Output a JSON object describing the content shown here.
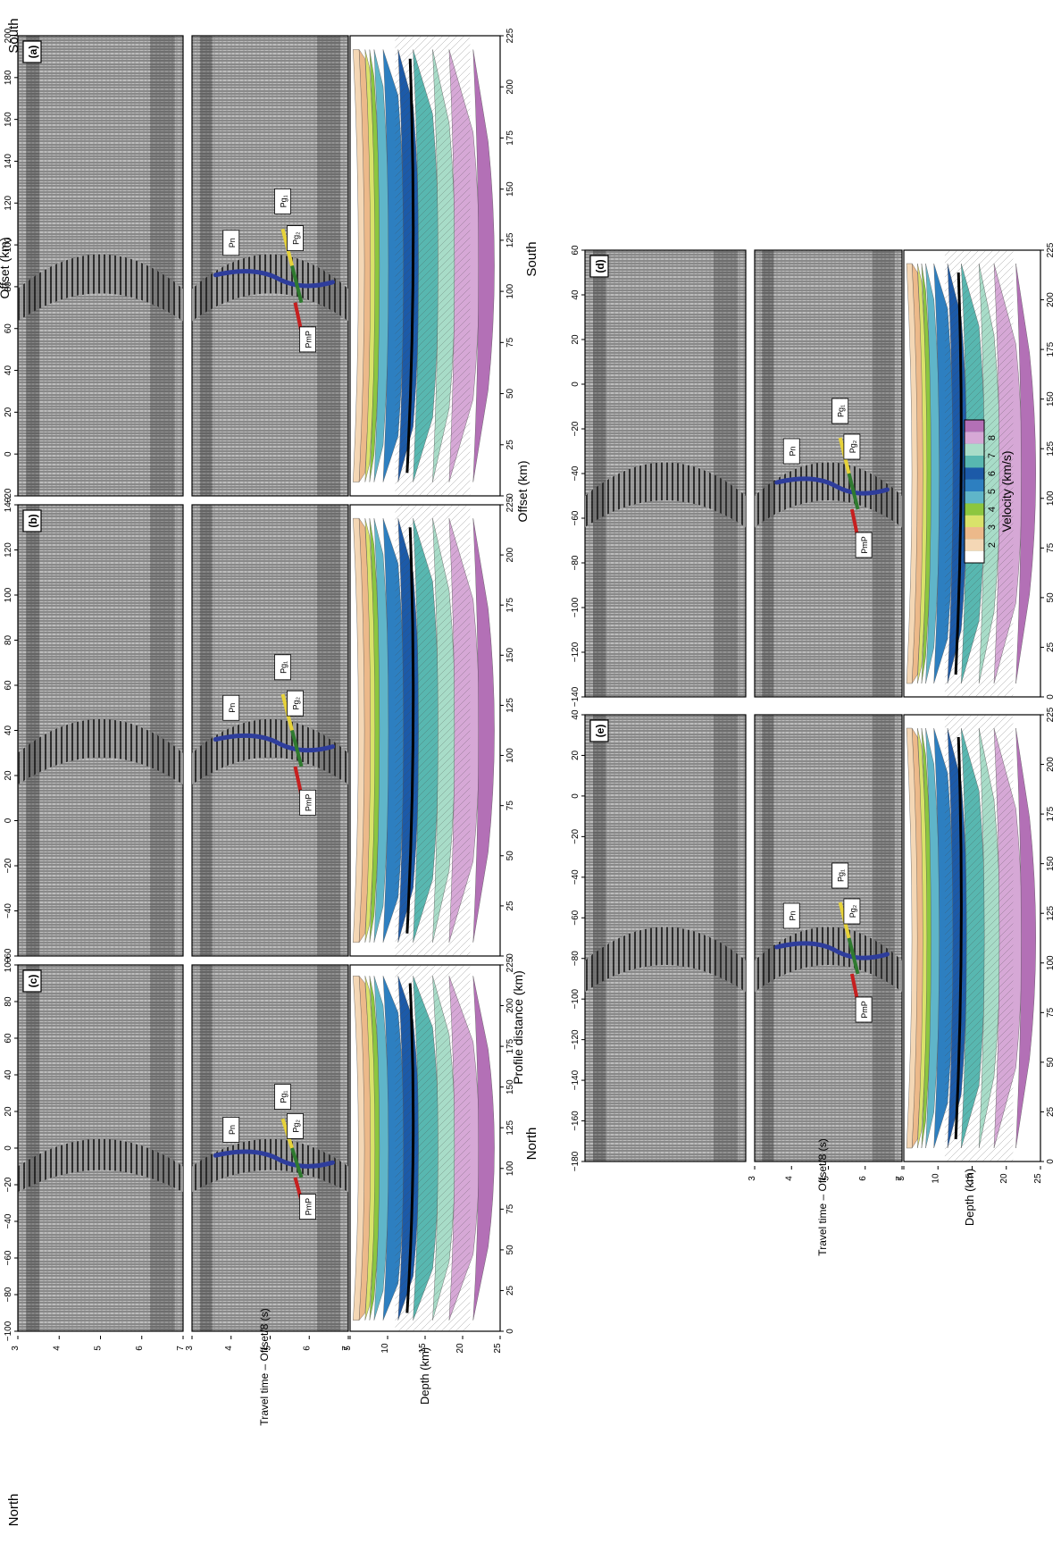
{
  "figure": {
    "orientation_note": "",
    "north_label": "North",
    "south_label": "South",
    "offset_axis_label": "Offset (km)",
    "profile_axis_label": "Profile distance (km)",
    "time_axis_label": "Travel time – Offset/8 (s)",
    "depth_axis_label": "Depth (km)",
    "time_ticks": [
      "3",
      "4",
      "5",
      "6",
      "7"
    ],
    "depth_ticks": [
      "5",
      "10",
      "15",
      "20",
      "25"
    ],
    "profile_ticks": [
      "0",
      "25",
      "50",
      "75",
      "100",
      "125",
      "150",
      "175",
      "200",
      "225"
    ],
    "phase_labels": {
      "pg1": "Pg₁",
      "pg2": "Pg₂",
      "pmp": "PmP",
      "pn": "Pn"
    }
  },
  "panels": [
    {
      "id": "a",
      "label": "(a)",
      "offset_ticks": [
        "−20",
        "0",
        "20",
        "40",
        "60",
        "80",
        "100",
        "120",
        "140",
        "160",
        "180",
        "200"
      ]
    },
    {
      "id": "b",
      "label": "(b)",
      "offset_ticks": [
        "−60",
        "−40",
        "−20",
        "0",
        "20",
        "40",
        "60",
        "80",
        "100",
        "120",
        "140"
      ]
    },
    {
      "id": "c",
      "label": "(c)",
      "offset_ticks": [
        "−100",
        "−80",
        "−60",
        "−40",
        "−20",
        "0",
        "20",
        "40",
        "60",
        "80",
        "100"
      ]
    },
    {
      "id": "d",
      "label": "(d)",
      "offset_ticks": [
        "−140",
        "−120",
        "−100",
        "−80",
        "−60",
        "−40",
        "−20",
        "0",
        "20",
        "40",
        "60"
      ]
    },
    {
      "id": "e",
      "label": "(e)",
      "offset_ticks": [
        "−180",
        "−160",
        "−140",
        "−120",
        "−100",
        "−80",
        "−60",
        "−40",
        "−20",
        "0",
        "20",
        "40"
      ]
    }
  ],
  "colorbar": {
    "title": "Velocity (km/s)",
    "ticks": [
      "2",
      "3",
      "4",
      "5",
      "6",
      "7",
      "8"
    ],
    "colors": [
      "#ffffff",
      "#f4d7b5",
      "#ecb98a",
      "#d9e26a",
      "#8cc63f",
      "#5fb5c9",
      "#2d7fc0",
      "#1c5aa8",
      "#58b7b0",
      "#a8dcc8",
      "#d6a8d6",
      "#b370b6"
    ]
  }
}
